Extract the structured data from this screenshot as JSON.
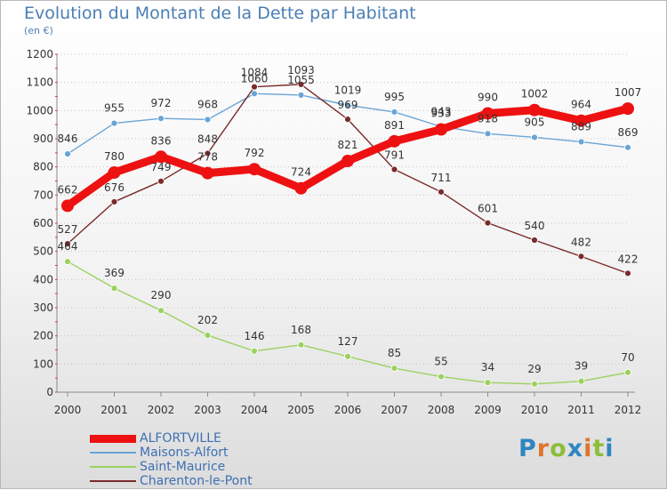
{
  "header": {
    "title": "Evolution du Montant de la Dette par Habitant",
    "subtitle": "(en €)"
  },
  "logo": {
    "letters": [
      "P",
      "r",
      "o",
      "x",
      "i",
      "t",
      "i"
    ],
    "colors": [
      "#2e86c1",
      "#e0752a",
      "#8dbd3a",
      "#2e86c1",
      "#e0752a",
      "#8dbd3a",
      "#2e86c1"
    ]
  },
  "chart_data": {
    "type": "line",
    "title": "Evolution du Montant de la Dette par Habitant",
    "subtitle": "(en €)",
    "x": [
      "2000",
      "2001",
      "2002",
      "2003",
      "2004",
      "2005",
      "2006",
      "2007",
      "2008",
      "2009",
      "2010",
      "2011",
      "2012"
    ],
    "ylim": [
      0,
      1200
    ],
    "yticks": [
      0,
      100,
      200,
      300,
      400,
      500,
      600,
      700,
      800,
      900,
      1000,
      1100,
      1200
    ],
    "grid": "horizontal dotted",
    "legend_position": "bottom-left",
    "series": [
      {
        "name": "ALFORTVILLE",
        "color": "#ee1111",
        "emphasis": true,
        "values": [
          662,
          780,
          836,
          778,
          792,
          724,
          821,
          891,
          933,
          990,
          1002,
          964,
          1007
        ]
      },
      {
        "name": "Maisons-Alfort",
        "color": "#6aa4d6",
        "emphasis": false,
        "values": [
          846,
          955,
          972,
          968,
          1060,
          1055,
          1019,
          995,
          943,
          918,
          905,
          889,
          869
        ]
      },
      {
        "name": "Saint-Maurice",
        "color": "#9cd15e",
        "emphasis": false,
        "values": [
          464,
          369,
          290,
          202,
          146,
          168,
          127,
          85,
          55,
          34,
          29,
          39,
          70
        ]
      },
      {
        "name": "Charenton-le-Pont",
        "color": "#7a2b2b",
        "emphasis": false,
        "values": [
          527,
          676,
          749,
          848,
          1084,
          1093,
          969,
          791,
          711,
          601,
          540,
          482,
          422
        ]
      }
    ]
  }
}
